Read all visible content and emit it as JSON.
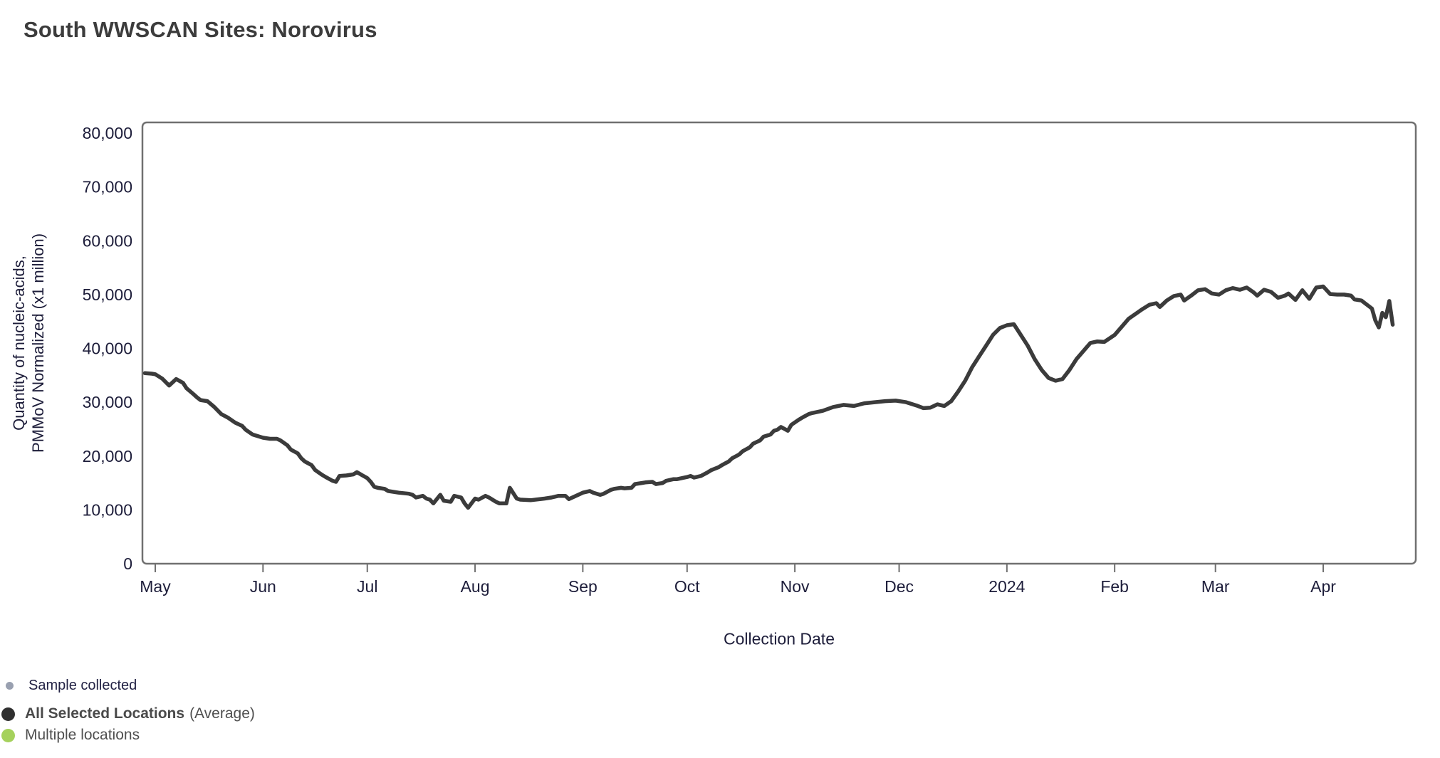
{
  "page": {
    "title": "South WWSCAN Sites: Norovirus"
  },
  "legend": {
    "sample": {
      "label": "Sample collected",
      "dot_color": "#99a0b0"
    },
    "average": {
      "label_bold": "All Selected Locations",
      "label_suffix": "(Average)",
      "dot_color": "#2f2f2f"
    },
    "multiple": {
      "label": "Multiple locations",
      "dot_color": "#a5d15c"
    }
  },
  "chart_data": {
    "type": "line",
    "title": "South WWSCAN Sites: Norovirus",
    "xlabel": "Collection Date",
    "ylabel": "Quantity of nucleic-acids, PMMoV Normalized (x1 million)",
    "ylabel_line1": "Quantity of nucleic-acids,",
    "ylabel_line2": "PMMoV Normalized (x1 million)",
    "ylim": [
      0,
      80000
    ],
    "grid": false,
    "legend_position": "bottom-left",
    "line_color": "#3b3b3b",
    "axis_text_color": "#1d1d3a",
    "border_color": "#707070",
    "yticks": [
      {
        "label": "0",
        "value": 0
      },
      {
        "label": "10,000",
        "value": 10000
      },
      {
        "label": "20,000",
        "value": 20000
      },
      {
        "label": "30,000",
        "value": 30000
      },
      {
        "label": "40,000",
        "value": 40000
      },
      {
        "label": "50,000",
        "value": 50000
      },
      {
        "label": "60,000",
        "value": 60000
      },
      {
        "label": "70,000",
        "value": 70000
      },
      {
        "label": "80,000",
        "value": 80000
      }
    ],
    "xticks": [
      {
        "label": "May",
        "date": "2023-05-01"
      },
      {
        "label": "Jun",
        "date": "2023-06-01"
      },
      {
        "label": "Jul",
        "date": "2023-07-01"
      },
      {
        "label": "Aug",
        "date": "2023-08-01"
      },
      {
        "label": "Sep",
        "date": "2023-09-01"
      },
      {
        "label": "Oct",
        "date": "2023-10-01"
      },
      {
        "label": "Nov",
        "date": "2023-11-01"
      },
      {
        "label": "Dec",
        "date": "2023-12-01"
      },
      {
        "label": "2024",
        "date": "2024-01-01"
      },
      {
        "label": "Feb",
        "date": "2024-02-01"
      },
      {
        "label": "Mar",
        "date": "2024-03-01"
      },
      {
        "label": "Apr",
        "date": "2024-04-01"
      }
    ],
    "series": [
      {
        "name": "All Selected Locations (Average)",
        "points": [
          [
            "2023-04-28",
            35400
          ],
          [
            "2023-04-30",
            35300
          ],
          [
            "2023-05-01",
            35200
          ],
          [
            "2023-05-03",
            34400
          ],
          [
            "2023-05-05",
            33100
          ],
          [
            "2023-05-07",
            34300
          ],
          [
            "2023-05-09",
            33600
          ],
          [
            "2023-05-10",
            32600
          ],
          [
            "2023-05-12",
            31500
          ],
          [
            "2023-05-13",
            30900
          ],
          [
            "2023-05-14",
            30400
          ],
          [
            "2023-05-16",
            30200
          ],
          [
            "2023-05-18",
            29100
          ],
          [
            "2023-05-20",
            27800
          ],
          [
            "2023-05-22",
            27100
          ],
          [
            "2023-05-24",
            26200
          ],
          [
            "2023-05-26",
            25600
          ],
          [
            "2023-05-27",
            24900
          ],
          [
            "2023-05-29",
            24000
          ],
          [
            "2023-05-31",
            23600
          ],
          [
            "2023-06-01",
            23400
          ],
          [
            "2023-06-03",
            23200
          ],
          [
            "2023-06-05",
            23200
          ],
          [
            "2023-06-06",
            22900
          ],
          [
            "2023-06-08",
            22000
          ],
          [
            "2023-06-09",
            21200
          ],
          [
            "2023-06-11",
            20500
          ],
          [
            "2023-06-12",
            19600
          ],
          [
            "2023-06-13",
            19000
          ],
          [
            "2023-06-15",
            18300
          ],
          [
            "2023-06-16",
            17400
          ],
          [
            "2023-06-18",
            16500
          ],
          [
            "2023-06-19",
            16100
          ],
          [
            "2023-06-21",
            15400
          ],
          [
            "2023-06-22",
            15200
          ],
          [
            "2023-06-23",
            16300
          ],
          [
            "2023-06-25",
            16400
          ],
          [
            "2023-06-27",
            16600
          ],
          [
            "2023-06-28",
            17000
          ],
          [
            "2023-07-01",
            15900
          ],
          [
            "2023-07-02",
            15200
          ],
          [
            "2023-07-03",
            14300
          ],
          [
            "2023-07-04",
            14100
          ],
          [
            "2023-07-06",
            13900
          ],
          [
            "2023-07-07",
            13500
          ],
          [
            "2023-07-10",
            13200
          ],
          [
            "2023-07-13",
            13000
          ],
          [
            "2023-07-14",
            12800
          ],
          [
            "2023-07-15",
            12300
          ],
          [
            "2023-07-17",
            12600
          ],
          [
            "2023-07-18",
            12100
          ],
          [
            "2023-07-19",
            11900
          ],
          [
            "2023-07-20",
            11200
          ],
          [
            "2023-07-22",
            12800
          ],
          [
            "2023-07-23",
            11700
          ],
          [
            "2023-07-25",
            11500
          ],
          [
            "2023-07-26",
            12600
          ],
          [
            "2023-07-28",
            12300
          ],
          [
            "2023-07-29",
            11200
          ],
          [
            "2023-07-30",
            10400
          ],
          [
            "2023-08-01",
            12100
          ],
          [
            "2023-08-02",
            11900
          ],
          [
            "2023-08-04",
            12600
          ],
          [
            "2023-08-05",
            12300
          ],
          [
            "2023-08-07",
            11500
          ],
          [
            "2023-08-08",
            11200
          ],
          [
            "2023-08-10",
            11200
          ],
          [
            "2023-08-11",
            14100
          ],
          [
            "2023-08-13",
            12100
          ],
          [
            "2023-08-14",
            11900
          ],
          [
            "2023-08-17",
            11800
          ],
          [
            "2023-08-21",
            12100
          ],
          [
            "2023-08-23",
            12300
          ],
          [
            "2023-08-25",
            12600
          ],
          [
            "2023-08-27",
            12600
          ],
          [
            "2023-08-28",
            12000
          ],
          [
            "2023-08-30",
            12600
          ],
          [
            "2023-09-01",
            13200
          ],
          [
            "2023-09-03",
            13500
          ],
          [
            "2023-09-04",
            13200
          ],
          [
            "2023-09-06",
            12800
          ],
          [
            "2023-09-07",
            13000
          ],
          [
            "2023-09-09",
            13700
          ],
          [
            "2023-09-10",
            13900
          ],
          [
            "2023-09-12",
            14100
          ],
          [
            "2023-09-13",
            14000
          ],
          [
            "2023-09-15",
            14100
          ],
          [
            "2023-09-16",
            14800
          ],
          [
            "2023-09-18",
            15000
          ],
          [
            "2023-09-19",
            15100
          ],
          [
            "2023-09-21",
            15200
          ],
          [
            "2023-09-22",
            14800
          ],
          [
            "2023-09-24",
            15000
          ],
          [
            "2023-09-25",
            15400
          ],
          [
            "2023-09-27",
            15700
          ],
          [
            "2023-09-28",
            15700
          ],
          [
            "2023-10-01",
            16100
          ],
          [
            "2023-10-02",
            16300
          ],
          [
            "2023-10-03",
            16000
          ],
          [
            "2023-10-05",
            16300
          ],
          [
            "2023-10-07",
            17000
          ],
          [
            "2023-10-08",
            17400
          ],
          [
            "2023-10-10",
            17900
          ],
          [
            "2023-10-11",
            18300
          ],
          [
            "2023-10-13",
            19000
          ],
          [
            "2023-10-14",
            19600
          ],
          [
            "2023-10-16",
            20300
          ],
          [
            "2023-10-17",
            20900
          ],
          [
            "2023-10-19",
            21600
          ],
          [
            "2023-10-20",
            22300
          ],
          [
            "2023-10-22",
            22900
          ],
          [
            "2023-10-23",
            23600
          ],
          [
            "2023-10-25",
            24000
          ],
          [
            "2023-10-26",
            24700
          ],
          [
            "2023-10-27",
            24900
          ],
          [
            "2023-10-28",
            25400
          ],
          [
            "2023-10-30",
            24700
          ],
          [
            "2023-10-31",
            25800
          ],
          [
            "2023-11-02",
            26700
          ],
          [
            "2023-11-03",
            27100
          ],
          [
            "2023-11-05",
            27800
          ],
          [
            "2023-11-06",
            28000
          ],
          [
            "2023-11-09",
            28400
          ],
          [
            "2023-11-12",
            29100
          ],
          [
            "2023-11-15",
            29500
          ],
          [
            "2023-11-18",
            29300
          ],
          [
            "2023-11-21",
            29800
          ],
          [
            "2023-11-24",
            30000
          ],
          [
            "2023-11-27",
            30200
          ],
          [
            "2023-11-30",
            30300
          ],
          [
            "2023-12-03",
            30000
          ],
          [
            "2023-12-06",
            29400
          ],
          [
            "2023-12-08",
            28900
          ],
          [
            "2023-12-10",
            29000
          ],
          [
            "2023-12-12",
            29600
          ],
          [
            "2023-12-14",
            29300
          ],
          [
            "2023-12-16",
            30200
          ],
          [
            "2023-12-18",
            32000
          ],
          [
            "2023-12-20",
            34000
          ],
          [
            "2023-12-22",
            36500
          ],
          [
            "2023-12-24",
            38500
          ],
          [
            "2023-12-26",
            40500
          ],
          [
            "2023-12-28",
            42500
          ],
          [
            "2023-12-30",
            43800
          ],
          [
            "2024-01-01",
            44300
          ],
          [
            "2024-01-03",
            44500
          ],
          [
            "2024-01-05",
            42500
          ],
          [
            "2024-01-07",
            40500
          ],
          [
            "2024-01-09",
            38000
          ],
          [
            "2024-01-11",
            36000
          ],
          [
            "2024-01-13",
            34500
          ],
          [
            "2024-01-15",
            34000
          ],
          [
            "2024-01-17",
            34300
          ],
          [
            "2024-01-19",
            36000
          ],
          [
            "2024-01-21",
            38000
          ],
          [
            "2024-01-23",
            39500
          ],
          [
            "2024-01-25",
            41000
          ],
          [
            "2024-01-27",
            41300
          ],
          [
            "2024-01-29",
            41200
          ],
          [
            "2024-02-01",
            42500
          ],
          [
            "2024-02-03",
            44000
          ],
          [
            "2024-02-05",
            45500
          ],
          [
            "2024-02-07",
            46400
          ],
          [
            "2024-02-09",
            47300
          ],
          [
            "2024-02-11",
            48100
          ],
          [
            "2024-02-13",
            48400
          ],
          [
            "2024-02-14",
            47700
          ],
          [
            "2024-02-16",
            48900
          ],
          [
            "2024-02-18",
            49700
          ],
          [
            "2024-02-20",
            50000
          ],
          [
            "2024-02-21",
            48900
          ],
          [
            "2024-02-23",
            49800
          ],
          [
            "2024-02-25",
            50800
          ],
          [
            "2024-02-27",
            51000
          ],
          [
            "2024-02-29",
            50200
          ],
          [
            "2024-03-02",
            50000
          ],
          [
            "2024-03-04",
            50800
          ],
          [
            "2024-03-06",
            51200
          ],
          [
            "2024-03-08",
            50900
          ],
          [
            "2024-03-10",
            51300
          ],
          [
            "2024-03-12",
            50400
          ],
          [
            "2024-03-13",
            49800
          ],
          [
            "2024-03-15",
            50900
          ],
          [
            "2024-03-17",
            50500
          ],
          [
            "2024-03-19",
            49400
          ],
          [
            "2024-03-21",
            49800
          ],
          [
            "2024-03-22",
            50200
          ],
          [
            "2024-03-24",
            49000
          ],
          [
            "2024-03-26",
            50800
          ],
          [
            "2024-03-28",
            49200
          ],
          [
            "2024-03-30",
            51300
          ],
          [
            "2024-04-01",
            51500
          ],
          [
            "2024-04-03",
            50100
          ],
          [
            "2024-04-05",
            50000
          ],
          [
            "2024-04-07",
            50000
          ],
          [
            "2024-04-09",
            49800
          ],
          [
            "2024-04-10",
            49100
          ],
          [
            "2024-04-12",
            48900
          ],
          [
            "2024-04-13",
            48400
          ],
          [
            "2024-04-15",
            47400
          ],
          [
            "2024-04-16",
            45200
          ],
          [
            "2024-04-17",
            43900
          ],
          [
            "2024-04-18",
            46600
          ],
          [
            "2024-04-19",
            45800
          ],
          [
            "2024-04-20",
            48800
          ],
          [
            "2024-04-21",
            44400
          ]
        ]
      }
    ]
  }
}
